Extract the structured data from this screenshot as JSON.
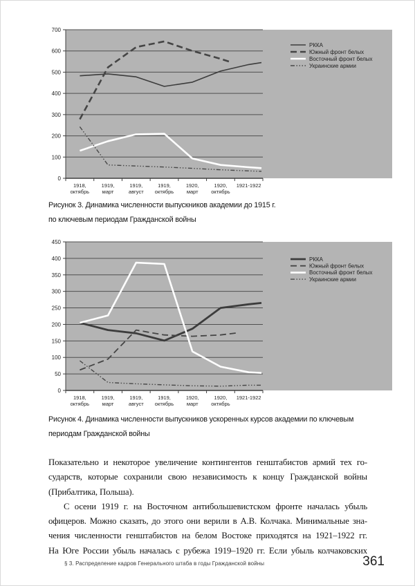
{
  "chart_data": [
    {
      "type": "line",
      "figure_label": "Рисунок 3",
      "caption_lines": [
        "Рисунок 3. Динамика численности выпускников академии до 1915 г.",
        "по ключевым периодам Гражданской войны"
      ],
      "categories": [
        [
          "1918,",
          "октябрь"
        ],
        [
          "1919,",
          "март"
        ],
        [
          "1919,",
          "август"
        ],
        [
          "1919,",
          "октябрь"
        ],
        [
          "1920,",
          "март"
        ],
        [
          "1920,",
          "октябрь"
        ],
        [
          "1921-1922"
        ]
      ],
      "ylim": [
        0,
        700
      ],
      "ytick_step": 100,
      "grid": true,
      "legend_position": "right",
      "background": "#b4b4b4",
      "series": [
        {
          "name": "РККА",
          "line": "solid",
          "color": "#3c3c3c",
          "width": 1.6,
          "x": [
            0,
            1,
            2,
            3,
            4,
            5,
            6,
            6.45
          ],
          "values": [
            483,
            492,
            478,
            433,
            453,
            505,
            536,
            545
          ]
        },
        {
          "name": "Южный фронт белых",
          "line": "dashed",
          "color": "#454545",
          "width": 2.6,
          "x": [
            0,
            1,
            2,
            3,
            4,
            5,
            5.37
          ],
          "values": [
            278,
            523,
            618,
            645,
            600,
            563,
            547
          ]
        },
        {
          "name": "Восточный фронт белых",
          "line": "solid",
          "color": "#ffffff",
          "width": 2.6,
          "x": [
            0,
            1,
            2,
            3,
            4,
            5,
            6,
            6.45
          ],
          "values": [
            130,
            175,
            207,
            210,
            93,
            63,
            52,
            48
          ]
        },
        {
          "name": "Украинские армии",
          "line": "dashdot",
          "color": "#474747",
          "width": 1.4,
          "x": [
            0,
            1,
            2,
            3,
            4,
            5,
            6,
            6.45
          ],
          "values": [
            243,
            63,
            58,
            53,
            47,
            40,
            35,
            33
          ]
        }
      ]
    },
    {
      "type": "line",
      "figure_label": "Рисунок 4",
      "caption_lines": [
        "Рисунок 4. Динамика численности выпускников ускоренных курсов академии по ключевым",
        "периодам Гражданской войны"
      ],
      "categories": [
        [
          "1918,",
          "октябрь"
        ],
        [
          "1919,",
          "март"
        ],
        [
          "1919,",
          "август"
        ],
        [
          "1919,",
          "октябрь"
        ],
        [
          "1920,",
          "март"
        ],
        [
          "1920,",
          "октябрь"
        ],
        [
          "1921-1922"
        ]
      ],
      "ylim": [
        0,
        450
      ],
      "ytick_step": 50,
      "grid": true,
      "legend_position": "right",
      "background": "#b4b4b4",
      "series": [
        {
          "name": "РККА",
          "line": "solid",
          "color": "#3c3c3c",
          "width": 2.8,
          "x": [
            0,
            1,
            2,
            3,
            4,
            5,
            6,
            6.45
          ],
          "values": [
            205,
            183,
            173,
            151,
            187,
            250,
            261,
            265
          ]
        },
        {
          "name": "Южный фронт белых",
          "line": "dashed",
          "color": "#454545",
          "width": 1.8,
          "x": [
            0,
            1,
            2,
            3,
            4,
            5,
            5.55
          ],
          "values": [
            62,
            95,
            183,
            168,
            164,
            168,
            174
          ]
        },
        {
          "name": "Восточный фронт белых",
          "line": "solid",
          "color": "#ffffff",
          "width": 2.6,
          "x": [
            0,
            1,
            2,
            3,
            4,
            5,
            6,
            6.45
          ],
          "values": [
            205,
            227,
            387,
            383,
            118,
            72,
            55,
            53
          ]
        },
        {
          "name": "Украинские армии",
          "line": "dashdot",
          "color": "#474747",
          "width": 1.4,
          "x": [
            0,
            1,
            2,
            3,
            4,
            5,
            6,
            6.45
          ],
          "values": [
            90,
            24,
            20,
            17,
            14,
            13,
            16,
            16
          ]
        }
      ]
    }
  ],
  "body": {
    "paragraphs": [
      {
        "lines": [
          "Показательно и некоторое увеличение контингентов генштабистов армий тех го-",
          "сударств, которые сохранили свою независимость к концу Гражданской войны",
          "(Прибалтика, Польша)."
        ]
      },
      {
        "lines": [
          "С осени 1919 г. на Восточном антибольшевистском фронте началась убыль",
          "офицеров. Можно сказать, до этого они верили в А.В. Колчака. Минимальные зна-",
          "чения численности генштабистов на белом Востоке приходятся на 1921–1922 гг.",
          "На Юге России убыль началась с рубежа 1919–1920 гг. Если убыль колчаковских"
        ]
      }
    ]
  },
  "footer": {
    "section": "§ 3. Распределение кадров Генерального штаба в годы Гражданской войны",
    "page_number": "361"
  },
  "colors": {
    "chart_background": "#b4b4b4",
    "grid_line": "#4f4f4f",
    "axis_line": "#3f3f3f",
    "label_text": "#1f1f1f"
  }
}
